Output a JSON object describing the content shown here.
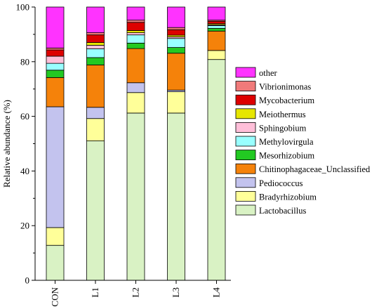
{
  "chart_data": {
    "type": "bar",
    "stacked": true,
    "ylabel": "Relative abundance (%)",
    "xlabel": "",
    "ylim": [
      0,
      100
    ],
    "yticks": [
      0,
      20,
      40,
      60,
      80,
      100
    ],
    "categories": [
      "CON",
      "L1",
      "L2",
      "L3",
      "L4"
    ],
    "series": [
      {
        "name": "Lactobacillus",
        "color": "#d9f2c4",
        "values": [
          12.8,
          51.0,
          61.2,
          61.2,
          80.8
        ]
      },
      {
        "name": "Bradyrhizobium",
        "color": "#ffff99",
        "values": [
          6.5,
          8.2,
          7.5,
          7.8,
          3.3
        ]
      },
      {
        "name": "Pediococcus",
        "color": "#c3c3ee",
        "values": [
          44.2,
          4.1,
          3.6,
          0.6,
          0.0
        ]
      },
      {
        "name": "Chitinophagaceae_Unclassified",
        "color": "#f5820a",
        "values": [
          10.7,
          15.5,
          12.5,
          13.5,
          7.1
        ]
      },
      {
        "name": "Mesorhizobium",
        "color": "#22c922",
        "values": [
          2.7,
          2.7,
          2.0,
          2.1,
          1.0
        ]
      },
      {
        "name": "Methylovirgula",
        "color": "#99ffff",
        "values": [
          2.5,
          3.2,
          3.0,
          3.3,
          1.0
        ]
      },
      {
        "name": "Sphingobium",
        "color": "#ffbfd9",
        "values": [
          2.6,
          1.3,
          0.8,
          0.6,
          0.3
        ]
      },
      {
        "name": "Meiothermus",
        "color": "#e6e600",
        "values": [
          0.0,
          1.0,
          0.8,
          0.6,
          0.4
        ]
      },
      {
        "name": "Mycobacterium",
        "color": "#dd0000",
        "values": [
          2.3,
          2.8,
          3.0,
          2.0,
          0.9
        ]
      },
      {
        "name": "Vibrionimonas",
        "color": "#f07a7a",
        "values": [
          0.7,
          0.8,
          0.8,
          0.8,
          0.4
        ]
      },
      {
        "name": "other",
        "color": "#ff33ff",
        "values": [
          15.0,
          9.4,
          4.8,
          7.5,
          4.8
        ]
      }
    ],
    "legend_position": "right",
    "grid": false
  }
}
